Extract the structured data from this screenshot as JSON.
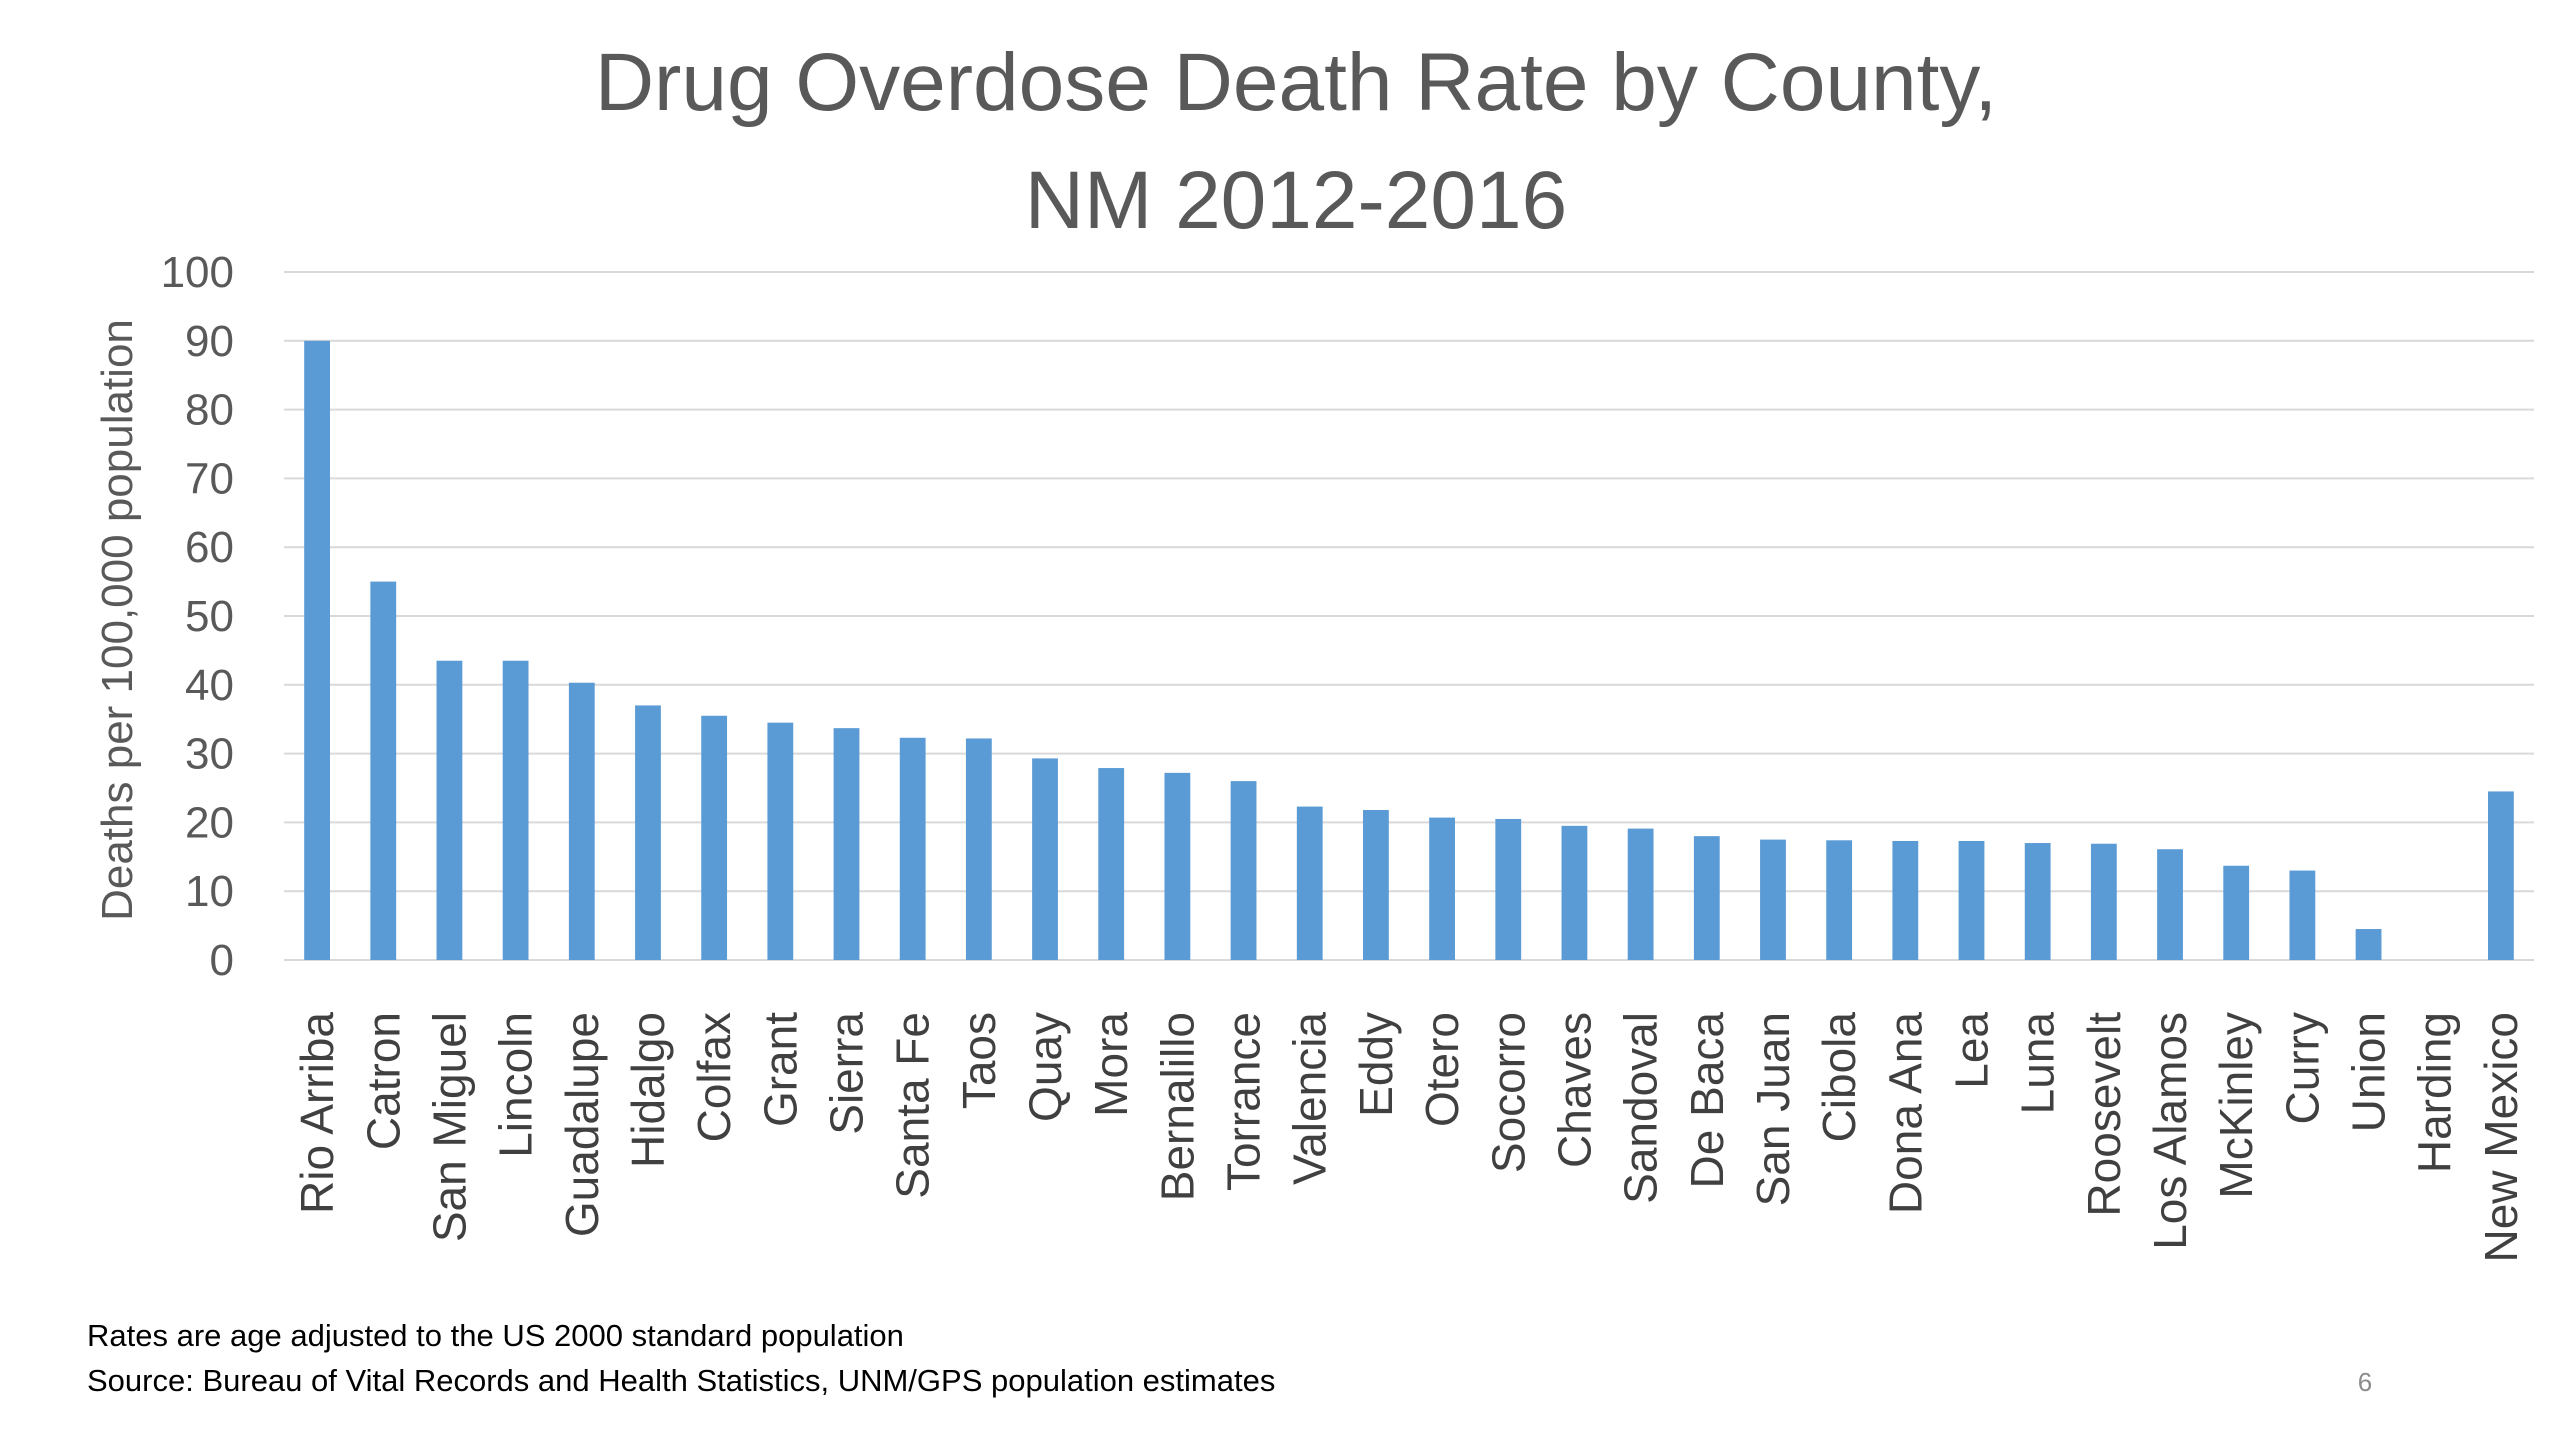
{
  "chart_data": {
    "type": "bar",
    "title_lines": [
      "Drug Overdose Death Rate by County,",
      "NM 2012-2016"
    ],
    "xlabel": "",
    "ylabel": "Deaths per 100,000 population",
    "ylim": [
      0,
      100
    ],
    "yticks": [
      0,
      10,
      20,
      30,
      40,
      50,
      60,
      70,
      80,
      90,
      100
    ],
    "grid": true,
    "legend": "none",
    "bar_color": "#5b9bd5",
    "categories": [
      "Rio Arriba",
      "Catron",
      "San Miguel",
      "Lincoln",
      "Guadalupe",
      "Hidalgo",
      "Colfax",
      "Grant",
      "Sierra",
      "Santa Fe",
      "Taos",
      "Quay",
      "Mora",
      "Bernalillo",
      "Torrance",
      "Valencia",
      "Eddy",
      "Otero",
      "Socorro",
      "Chaves",
      "Sandoval",
      "De Baca",
      "San Juan",
      "Cibola",
      "Dona Ana",
      "Lea",
      "Luna",
      "Roosevelt",
      "Los Alamos",
      "McKinley",
      "Curry",
      "Union",
      "Harding",
      "New Mexico"
    ],
    "values": [
      90,
      55,
      43.5,
      43.5,
      40.3,
      37,
      35.5,
      34.5,
      33.7,
      32.3,
      32.2,
      29.3,
      27.9,
      27.2,
      26,
      22.3,
      21.8,
      20.7,
      20.5,
      19.5,
      19.1,
      18,
      17.5,
      17.4,
      17.3,
      17.3,
      17,
      16.9,
      16.1,
      13.7,
      13,
      4.5,
      0,
      24.5
    ]
  },
  "footnotes": {
    "line1": "Rates are age adjusted to the US 2000 standard population",
    "line2": "Source:  Bureau of Vital Records and Health Statistics, UNM/GPS population estimates"
  },
  "page_number": "6"
}
